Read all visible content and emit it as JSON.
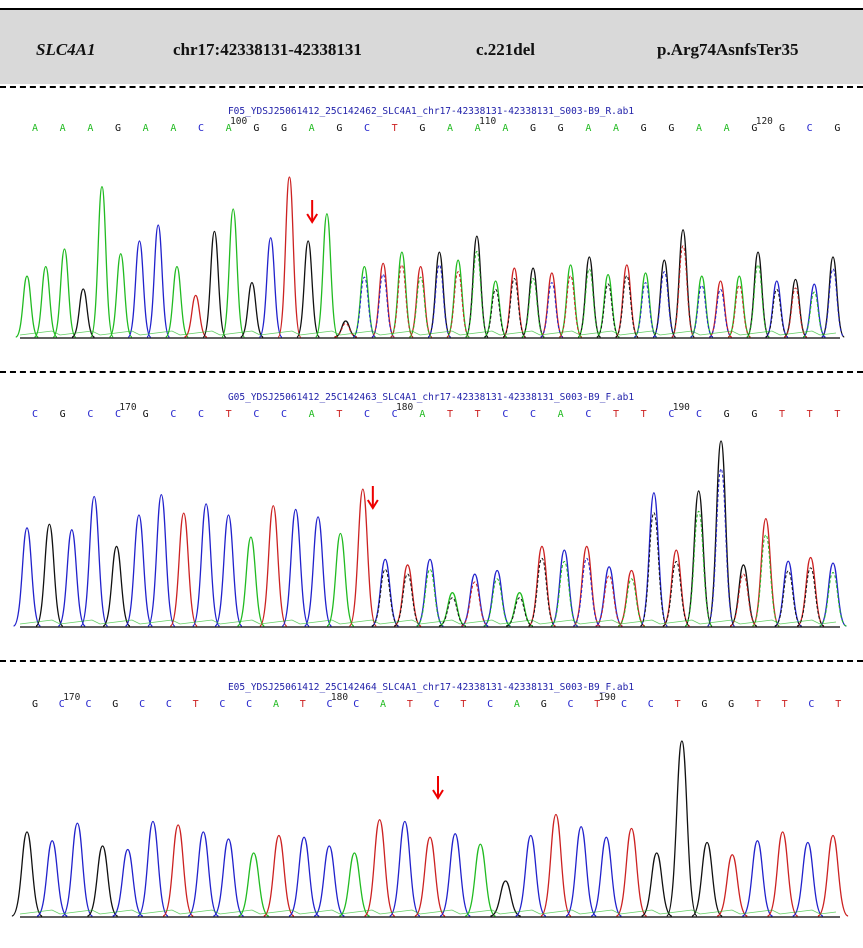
{
  "header": {
    "gene": "SLC4A1",
    "position": "chr17:42338131-42338131",
    "cdna": "c.221del",
    "protein": "p.Arg74AsnfsTer35"
  },
  "colors": {
    "A": "#22bb22",
    "C": "#2222cc",
    "G": "#111111",
    "T": "#cc2222",
    "arrow": "#ee0000",
    "baseline": "#000000"
  },
  "panels": [
    {
      "filename": "F05_YDSJ25061412_25C142462_SLC4A1_chr17-42338131-42338131_S003-B9_R.ab1",
      "bases": [
        "A",
        "A",
        "A",
        "G",
        "A",
        "A",
        "C",
        "A",
        "G",
        "G",
        "A",
        "G",
        "C",
        "T",
        "G",
        "A",
        "A",
        "A",
        "G",
        "G",
        "A",
        "A",
        "G",
        "G",
        "A",
        "A",
        "G",
        "G",
        "C",
        "G"
      ],
      "positions": [
        {
          "label": "100",
          "index": 7
        },
        {
          "label": "110",
          "index": 16
        },
        {
          "label": "120",
          "index": 26
        }
      ],
      "arrow_index": 15,
      "peaks": [
        {
          "b": "A",
          "h": 0.38
        },
        {
          "b": "A",
          "h": 0.44
        },
        {
          "b": "A",
          "h": 0.55
        },
        {
          "b": "G",
          "h": 0.3
        },
        {
          "b": "A",
          "h": 0.94
        },
        {
          "b": "A",
          "h": 0.52
        },
        {
          "b": "C",
          "h": 0.6
        },
        {
          "b": "C",
          "h": 0.7
        },
        {
          "b": "A",
          "h": 0.44
        },
        {
          "b": "T",
          "h": 0.26
        },
        {
          "b": "G",
          "h": 0.66
        },
        {
          "b": "A",
          "h": 0.8
        },
        {
          "b": "G",
          "h": 0.34
        },
        {
          "b": "C",
          "h": 0.62
        },
        {
          "b": "T",
          "h": 1.0
        },
        {
          "b": "G",
          "h": 0.6
        },
        {
          "b": "A",
          "h": 0.77
        },
        {
          "b": "G",
          "h": 0.1
        },
        {
          "b": "A",
          "h": 0.44
        },
        {
          "b": "T",
          "h": 0.46
        },
        {
          "b": "A",
          "h": 0.53
        },
        {
          "b": "T",
          "h": 0.44
        },
        {
          "b": "G",
          "h": 0.53
        },
        {
          "b": "A",
          "h": 0.48
        },
        {
          "b": "G",
          "h": 0.63
        },
        {
          "b": "A",
          "h": 0.35
        },
        {
          "b": "T",
          "h": 0.43
        },
        {
          "b": "G",
          "h": 0.43
        },
        {
          "b": "T",
          "h": 0.4
        },
        {
          "b": "A",
          "h": 0.45
        },
        {
          "b": "G",
          "h": 0.5
        },
        {
          "b": "A",
          "h": 0.39
        },
        {
          "b": "T",
          "h": 0.45
        },
        {
          "b": "A",
          "h": 0.4
        },
        {
          "b": "G",
          "h": 0.48
        },
        {
          "b": "G",
          "h": 0.67
        },
        {
          "b": "A",
          "h": 0.38
        },
        {
          "b": "T",
          "h": 0.35
        },
        {
          "b": "A",
          "h": 0.38
        },
        {
          "b": "G",
          "h": 0.53
        },
        {
          "b": "C",
          "h": 0.35
        },
        {
          "b": "G",
          "h": 0.36
        },
        {
          "b": "C",
          "h": 0.33
        },
        {
          "b": "G",
          "h": 0.5
        }
      ],
      "noise_from": 17
    },
    {
      "filename": "G05_YDSJ25061412_25C142463_SLC4A1_chr17-42338131-42338131_S003-B9_F.ab1",
      "bases": [
        "C",
        "G",
        "C",
        "C",
        "G",
        "C",
        "C",
        "T",
        "C",
        "C",
        "A",
        "T",
        "C",
        "C",
        "A",
        "T",
        "T",
        "C",
        "C",
        "A",
        "C",
        "T",
        "T",
        "C",
        "C",
        "G",
        "G",
        "T",
        "T",
        "T"
      ],
      "positions": [
        {
          "label": "170",
          "index": 3
        },
        {
          "label": "180",
          "index": 13
        },
        {
          "label": "190",
          "index": 23
        }
      ],
      "arrow_index": 15,
      "peaks": [
        {
          "b": "C",
          "h": 0.53
        },
        {
          "b": "G",
          "h": 0.55
        },
        {
          "b": "C",
          "h": 0.52
        },
        {
          "b": "C",
          "h": 0.7
        },
        {
          "b": "G",
          "h": 0.43
        },
        {
          "b": "C",
          "h": 0.6
        },
        {
          "b": "C",
          "h": 0.71
        },
        {
          "b": "T",
          "h": 0.61
        },
        {
          "b": "C",
          "h": 0.66
        },
        {
          "b": "C",
          "h": 0.6
        },
        {
          "b": "A",
          "h": 0.48
        },
        {
          "b": "T",
          "h": 0.65
        },
        {
          "b": "C",
          "h": 0.63
        },
        {
          "b": "C",
          "h": 0.59
        },
        {
          "b": "A",
          "h": 0.5
        },
        {
          "b": "T",
          "h": 0.74
        },
        {
          "b": "C",
          "h": 0.36
        },
        {
          "b": "T",
          "h": 0.33
        },
        {
          "b": "C",
          "h": 0.36
        },
        {
          "b": "A",
          "h": 0.18
        },
        {
          "b": "C",
          "h": 0.28
        },
        {
          "b": "C",
          "h": 0.3
        },
        {
          "b": "A",
          "h": 0.18
        },
        {
          "b": "T",
          "h": 0.43
        },
        {
          "b": "C",
          "h": 0.41
        },
        {
          "b": "T",
          "h": 0.43
        },
        {
          "b": "C",
          "h": 0.32
        },
        {
          "b": "T",
          "h": 0.3
        },
        {
          "b": "C",
          "h": 0.72
        },
        {
          "b": "T",
          "h": 0.41
        },
        {
          "b": "G",
          "h": 0.73
        },
        {
          "b": "G",
          "h": 1.0
        },
        {
          "b": "G",
          "h": 0.33
        },
        {
          "b": "T",
          "h": 0.58
        },
        {
          "b": "C",
          "h": 0.35
        },
        {
          "b": "T",
          "h": 0.37
        },
        {
          "b": "C",
          "h": 0.34
        }
      ],
      "noise_from": 16
    },
    {
      "filename": "E05_YDSJ25061412_25C142464_SLC4A1_chr17-42338131-42338131_S003-B9_F.ab1",
      "bases": [
        "G",
        "C",
        "C",
        "G",
        "C",
        "C",
        "T",
        "C",
        "C",
        "A",
        "T",
        "C",
        "C",
        "A",
        "T",
        "C",
        "T",
        "C",
        "A",
        "G",
        "C",
        "T",
        "C",
        "C",
        "T",
        "G",
        "G",
        "T",
        "T",
        "C",
        "T"
      ],
      "positions": [
        {
          "label": "170",
          "index": 1
        },
        {
          "label": "180",
          "index": 11
        },
        {
          "label": "190",
          "index": 21
        }
      ],
      "arrow_index": 16,
      "peaks": [
        {
          "b": "G",
          "h": 0.48
        },
        {
          "b": "C",
          "h": 0.43
        },
        {
          "b": "C",
          "h": 0.53
        },
        {
          "b": "G",
          "h": 0.4
        },
        {
          "b": "C",
          "h": 0.38
        },
        {
          "b": "C",
          "h": 0.54
        },
        {
          "b": "T",
          "h": 0.52
        },
        {
          "b": "C",
          "h": 0.48
        },
        {
          "b": "C",
          "h": 0.44
        },
        {
          "b": "A",
          "h": 0.36
        },
        {
          "b": "T",
          "h": 0.46
        },
        {
          "b": "C",
          "h": 0.45
        },
        {
          "b": "C",
          "h": 0.4
        },
        {
          "b": "A",
          "h": 0.36
        },
        {
          "b": "T",
          "h": 0.55
        },
        {
          "b": "C",
          "h": 0.54
        },
        {
          "b": "T",
          "h": 0.45
        },
        {
          "b": "C",
          "h": 0.47
        },
        {
          "b": "A",
          "h": 0.41
        },
        {
          "b": "G",
          "h": 0.2
        },
        {
          "b": "C",
          "h": 0.46
        },
        {
          "b": "T",
          "h": 0.58
        },
        {
          "b": "C",
          "h": 0.51
        },
        {
          "b": "C",
          "h": 0.45
        },
        {
          "b": "T",
          "h": 0.5
        },
        {
          "b": "G",
          "h": 0.36
        },
        {
          "b": "G",
          "h": 1.0
        },
        {
          "b": "G",
          "h": 0.42
        },
        {
          "b": "T",
          "h": 0.35
        },
        {
          "b": "C",
          "h": 0.43
        },
        {
          "b": "T",
          "h": 0.48
        },
        {
          "b": "C",
          "h": 0.42
        },
        {
          "b": "T",
          "h": 0.46
        }
      ],
      "noise_from": 99
    }
  ]
}
